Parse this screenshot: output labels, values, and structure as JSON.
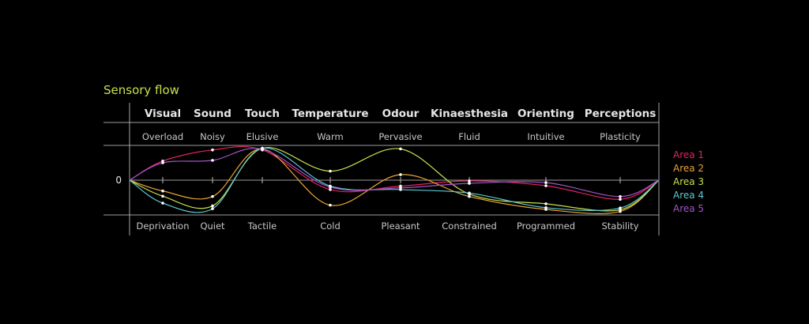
{
  "chart_data": {
    "type": "line",
    "title": "Sensory flow",
    "zero_label": "0",
    "categories": [
      "Visual",
      "Sound",
      "Touch",
      "Temperature",
      "Odour",
      "Kinaesthesia",
      "Orienting",
      "Perceptions"
    ],
    "high_labels": [
      "Overload",
      "Noisy",
      "Elusive",
      "Warm",
      "Pervasive",
      "Fluid",
      "Intuitive",
      "Plasticity"
    ],
    "low_labels": [
      "Deprivation",
      "Quiet",
      "Tactile",
      "Cold",
      "Pleasant",
      "Constrained",
      "Programmed",
      "Stability"
    ],
    "ylim": [
      -1,
      1
    ],
    "start_value": 0,
    "end_value": 0,
    "legend_position": "right",
    "series": [
      {
        "name": "Area 1",
        "color": "#e0245e",
        "values": [
          0.55,
          0.87,
          0.87,
          -0.27,
          -0.17,
          -0.02,
          -0.16,
          -0.55
        ]
      },
      {
        "name": "Area 2",
        "color": "#e8a335",
        "values": [
          -0.31,
          -0.47,
          0.9,
          -0.72,
          0.16,
          -0.47,
          -0.84,
          -0.9
        ]
      },
      {
        "name": "Area 3",
        "color": "#c6e14a",
        "values": [
          -0.46,
          -0.74,
          0.92,
          0.26,
          0.9,
          -0.4,
          -0.68,
          -0.85
        ]
      },
      {
        "name": "Area 4",
        "color": "#5fc8d0",
        "values": [
          -0.66,
          -0.82,
          0.92,
          -0.17,
          -0.27,
          -0.37,
          -0.79,
          -0.8
        ]
      },
      {
        "name": "Area 5",
        "color": "#a155c8",
        "values": [
          0.5,
          0.57,
          0.89,
          -0.2,
          -0.22,
          -0.09,
          -0.07,
          -0.47
        ]
      }
    ]
  }
}
